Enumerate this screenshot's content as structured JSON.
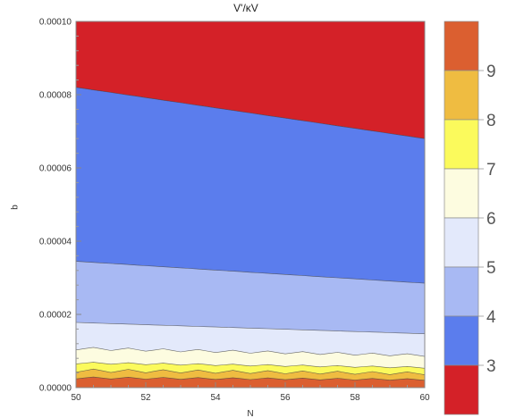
{
  "chart_data": {
    "type": "contour",
    "title": "V'/κV",
    "xlabel": "N",
    "ylabel": "q",
    "xlim": [
      50,
      60
    ],
    "ylim": [
      0,
      0.0001
    ],
    "x_ticks": [
      "50",
      "52",
      "54",
      "56",
      "58",
      "60"
    ],
    "y_ticks": [
      "0.00000",
      "0.00002",
      "0.00004",
      "0.00006",
      "0.00008",
      "0.00010"
    ],
    "grid": false,
    "legend_position": "right",
    "legend_labels": [
      "3",
      "4",
      "5",
      "6",
      "7",
      "8",
      "9"
    ],
    "levels": [
      {
        "range": "below 3",
        "color": "#d42128"
      },
      {
        "range": "3-4",
        "color": "#5b7ded"
      },
      {
        "range": "4-5",
        "color": "#a8b9f3"
      },
      {
        "range": "5-6",
        "color": "#e3e9fb"
      },
      {
        "range": "6-7",
        "color": "#fdfce0"
      },
      {
        "range": "7-8",
        "color": "#fbfa5c"
      },
      {
        "range": "8-9",
        "color": "#efbc41"
      },
      {
        "range": "above 9",
        "color": "#db5f30"
      }
    ],
    "contour_lines": [
      {
        "level": 3,
        "q_at_N50": 8.2e-05,
        "q_at_N60": 6.8e-05
      },
      {
        "level": 4,
        "q_at_N50": 3.45e-05,
        "q_at_N60": 2.85e-05
      },
      {
        "level": 5,
        "q_at_N50": 1.78e-05,
        "q_at_N60": 1.47e-05
      },
      {
        "level": 6,
        "q_at_N50": 1.03e-05,
        "q_at_N60": 8.5e-06
      },
      {
        "level": 7,
        "q_at_N50": 6.5e-06,
        "q_at_N60": 5.3e-06
      },
      {
        "level": 8,
        "q_at_N50": 4.2e-06,
        "q_at_N60": 3.5e-06
      },
      {
        "level": 9,
        "q_at_N50": 2.4e-06,
        "q_at_N60": 2e-06
      }
    ]
  }
}
